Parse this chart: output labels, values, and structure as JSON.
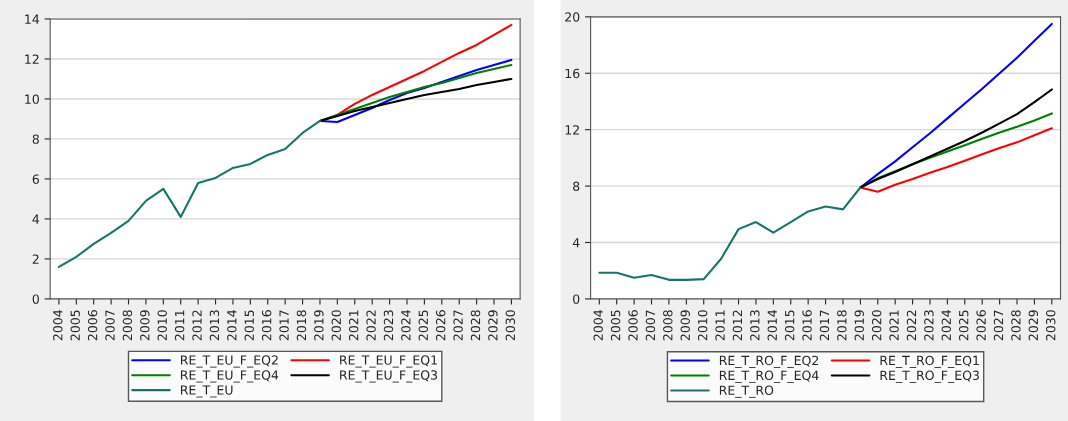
{
  "chart_data": [
    {
      "type": "line",
      "categories": [
        "2004",
        "2005",
        "2006",
        "2007",
        "2008",
        "2009",
        "2010",
        "2011",
        "2012",
        "2013",
        "2014",
        "2015",
        "2016",
        "2017",
        "2018",
        "2019",
        "2020",
        "2021",
        "2022",
        "2023",
        "2024",
        "2025",
        "2026",
        "2027",
        "2028",
        "2029",
        "2030"
      ],
      "ylim": [
        0,
        14
      ],
      "yticks": [
        0,
        2,
        4,
        6,
        8,
        10,
        12,
        14
      ],
      "grid": "y",
      "legend": "bottom",
      "series": [
        {
          "name": "RE_T_EU_F_EQ2",
          "color": "#0000ff",
          "values": [
            null,
            null,
            null,
            null,
            null,
            null,
            null,
            null,
            null,
            null,
            null,
            null,
            null,
            null,
            null,
            8.9,
            8.85,
            9.2,
            9.55,
            9.95,
            10.3,
            10.55,
            10.85,
            11.15,
            11.45,
            11.7,
            11.95
          ]
        },
        {
          "name": "RE_T_EU_F_EQ1",
          "color": "#ff0000",
          "values": [
            null,
            null,
            null,
            null,
            null,
            null,
            null,
            null,
            null,
            null,
            null,
            null,
            null,
            null,
            null,
            8.9,
            9.2,
            9.75,
            10.2,
            10.6,
            11.0,
            11.4,
            11.85,
            12.3,
            12.7,
            13.2,
            13.7
          ]
        },
        {
          "name": "RE_T_EU_F_EQ4",
          "color": "#008000",
          "values": [
            null,
            null,
            null,
            null,
            null,
            null,
            null,
            null,
            null,
            null,
            null,
            null,
            null,
            null,
            null,
            8.9,
            9.2,
            9.5,
            9.8,
            10.1,
            10.35,
            10.6,
            10.8,
            11.05,
            11.3,
            11.5,
            11.7
          ]
        },
        {
          "name": "RE_T_EU_F_EQ3",
          "color": "#000000",
          "values": [
            null,
            null,
            null,
            null,
            null,
            null,
            null,
            null,
            null,
            null,
            null,
            null,
            null,
            null,
            null,
            8.9,
            9.15,
            9.4,
            9.6,
            9.8,
            10.0,
            10.2,
            10.35,
            10.5,
            10.7,
            10.85,
            11.0
          ]
        },
        {
          "name": "RE_T_EU",
          "color": "#17766c",
          "values": [
            1.6,
            2.1,
            2.75,
            3.3,
            3.9,
            4.9,
            5.5,
            4.1,
            5.8,
            6.05,
            6.55,
            6.75,
            7.2,
            7.5,
            8.3,
            8.9,
            null,
            null,
            null,
            null,
            null,
            null,
            null,
            null,
            null,
            null,
            null
          ]
        }
      ]
    },
    {
      "type": "line",
      "categories": [
        "2004",
        "2005",
        "2006",
        "2007",
        "2008",
        "2009",
        "2010",
        "2011",
        "2012",
        "2013",
        "2014",
        "2015",
        "2016",
        "2017",
        "2018",
        "2019",
        "2020",
        "2021",
        "2022",
        "2023",
        "2024",
        "2025",
        "2026",
        "2027",
        "2028",
        "2029",
        "2030"
      ],
      "ylim": [
        0,
        20
      ],
      "yticks": [
        0,
        4,
        8,
        12,
        16,
        20
      ],
      "grid": "y",
      "legend": "bottom",
      "series": [
        {
          "name": "RE_T_RO_F_EQ2",
          "color": "#0000ff",
          "values": [
            null,
            null,
            null,
            null,
            null,
            null,
            null,
            null,
            null,
            null,
            null,
            null,
            null,
            null,
            null,
            7.9,
            8.85,
            9.75,
            10.75,
            11.75,
            12.8,
            13.85,
            14.9,
            16.0,
            17.1,
            18.3,
            19.5
          ]
        },
        {
          "name": "RE_T_RO_F_EQ1",
          "color": "#ff0000",
          "values": [
            null,
            null,
            null,
            null,
            null,
            null,
            null,
            null,
            null,
            null,
            null,
            null,
            null,
            null,
            null,
            7.9,
            7.6,
            8.1,
            8.5,
            8.95,
            9.35,
            9.8,
            10.25,
            10.7,
            11.1,
            11.6,
            12.1
          ]
        },
        {
          "name": "RE_T_RO_F_EQ4",
          "color": "#008000",
          "values": [
            null,
            null,
            null,
            null,
            null,
            null,
            null,
            null,
            null,
            null,
            null,
            null,
            null,
            null,
            null,
            7.9,
            8.55,
            9.05,
            9.55,
            10.0,
            10.45,
            10.9,
            11.35,
            11.8,
            12.2,
            12.65,
            13.15
          ]
        },
        {
          "name": "RE_T_RO_F_EQ3",
          "color": "#000000",
          "values": [
            null,
            null,
            null,
            null,
            null,
            null,
            null,
            null,
            null,
            null,
            null,
            null,
            null,
            null,
            null,
            7.9,
            8.5,
            9.0,
            9.55,
            10.1,
            10.65,
            11.2,
            11.8,
            12.45,
            13.1,
            13.95,
            14.85
          ]
        },
        {
          "name": "RE_T_RO",
          "color": "#17766c",
          "values": [
            1.85,
            1.85,
            1.5,
            1.7,
            1.35,
            1.35,
            1.4,
            2.85,
            4.95,
            5.45,
            4.7,
            5.45,
            6.2,
            6.55,
            6.35,
            7.9,
            null,
            null,
            null,
            null,
            null,
            null,
            null,
            null,
            null,
            null,
            null
          ]
        }
      ]
    }
  ]
}
